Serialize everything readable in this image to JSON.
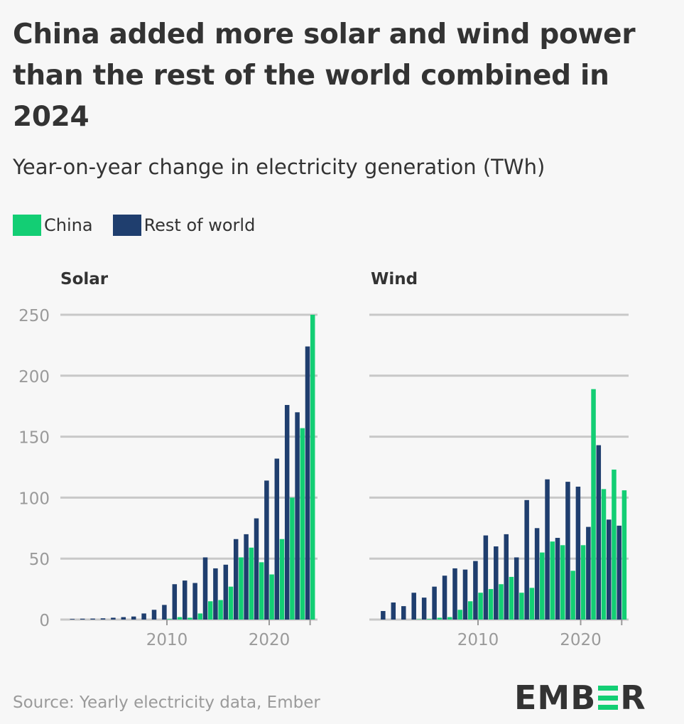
{
  "title": "China added more solar and wind power than the rest of the world combined in 2024",
  "subtitle": "Year-on-year change in electricity generation (TWh)",
  "legend": [
    {
      "label": "China",
      "color": "#13ce74"
    },
    {
      "label": "Rest of world",
      "color": "#1f3e6e"
    }
  ],
  "source": "Source: Yearly electricity data, Ember",
  "logo_text": "EMBER",
  "chart_data": [
    {
      "type": "bar",
      "title": "Solar",
      "x": [
        2001,
        2002,
        2003,
        2004,
        2005,
        2006,
        2007,
        2008,
        2009,
        2010,
        2011,
        2012,
        2013,
        2014,
        2015,
        2016,
        2017,
        2018,
        2019,
        2020,
        2021,
        2022,
        2023,
        2024
      ],
      "xticks": [
        "2010",
        "2020"
      ],
      "yticks": [
        "0",
        "50",
        "100",
        "150",
        "200",
        "250"
      ],
      "ylim": [
        0,
        250
      ],
      "grid": true,
      "series": [
        {
          "name": "Rest of world",
          "color": "#1f3e6e",
          "values": [
            0.5,
            0.7,
            0.8,
            1,
            1.5,
            2,
            2.5,
            5,
            8,
            12,
            29,
            32,
            30,
            51,
            42,
            45,
            66,
            70,
            83,
            114,
            132,
            176,
            170,
            224
          ]
        },
        {
          "name": "China",
          "color": "#13ce74",
          "values": [
            0,
            0,
            0,
            0,
            0,
            0,
            0,
            0,
            0,
            0.5,
            2,
            1.5,
            5,
            15,
            16,
            27,
            51,
            59,
            47,
            37,
            66,
            100,
            157,
            250
          ]
        }
      ]
    },
    {
      "type": "bar",
      "title": "Wind",
      "x": [
        2001,
        2002,
        2003,
        2004,
        2005,
        2006,
        2007,
        2008,
        2009,
        2010,
        2011,
        2012,
        2013,
        2014,
        2015,
        2016,
        2017,
        2018,
        2019,
        2020,
        2021,
        2022,
        2023,
        2024
      ],
      "xticks": [
        "2010",
        "2020"
      ],
      "ylim": [
        0,
        250
      ],
      "grid": true,
      "series": [
        {
          "name": "Rest of world",
          "color": "#1f3e6e",
          "values": [
            7,
            14,
            11,
            22,
            18,
            27,
            36,
            42,
            41,
            48,
            69,
            60,
            70,
            51,
            98,
            75,
            115,
            67,
            113,
            109,
            76,
            143,
            82,
            77
          ]
        },
        {
          "name": "China",
          "color": "#13ce74",
          "values": [
            0,
            0,
            0,
            0.3,
            0.5,
            1.5,
            2,
            8,
            15,
            22,
            25,
            29,
            35,
            22,
            26,
            55,
            64,
            61,
            40,
            61,
            189,
            107,
            123,
            106
          ]
        }
      ]
    }
  ]
}
